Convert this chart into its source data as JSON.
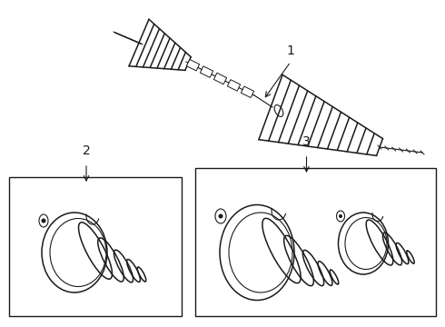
{
  "background_color": "#ffffff",
  "line_color": "#1a1a1a",
  "figsize": [
    4.9,
    3.6
  ],
  "dpi": 100,
  "label1": "1",
  "label2": "2",
  "label3": "3"
}
